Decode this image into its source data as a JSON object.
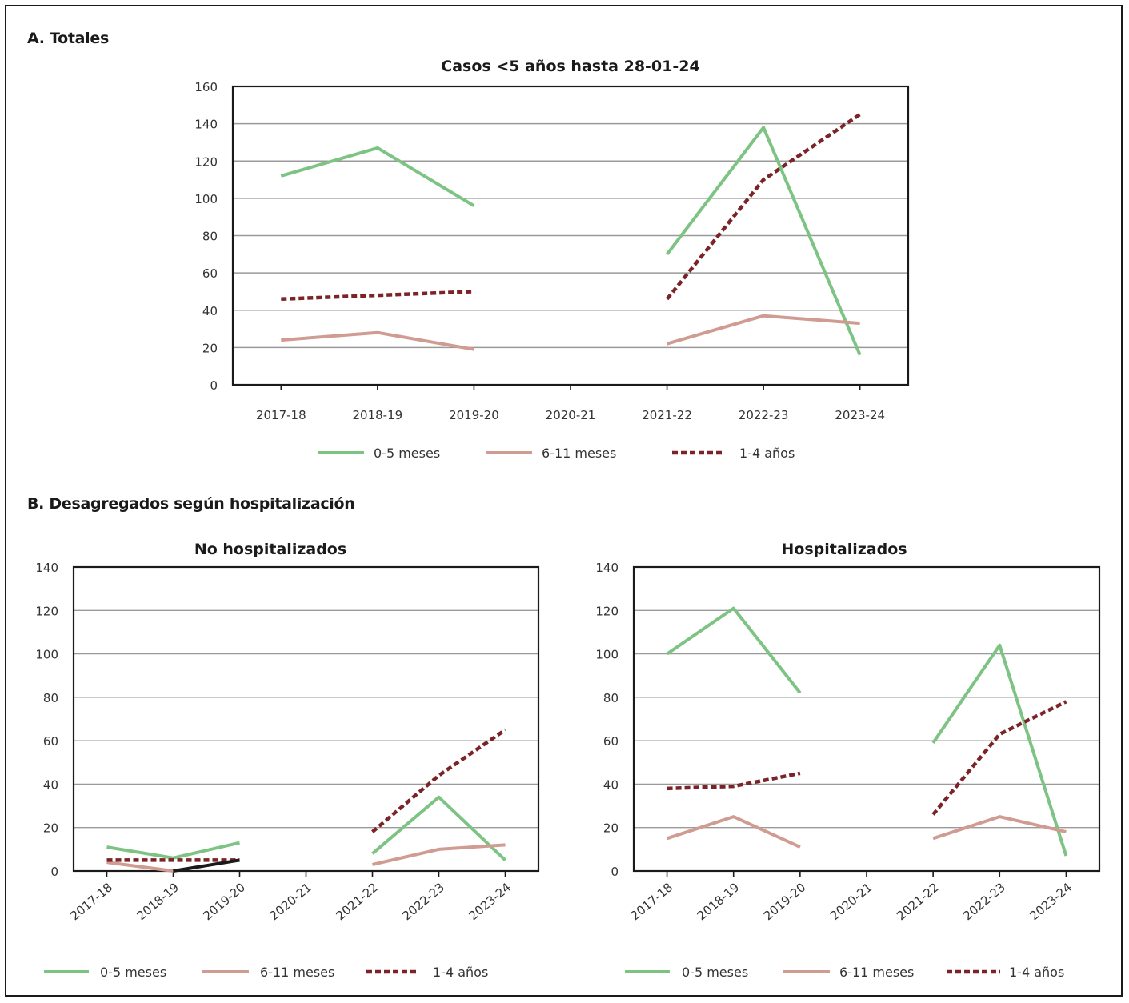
{
  "section_a": {
    "label": "A. Totales"
  },
  "section_b": {
    "label": "B. Desagregados según hospitalización"
  },
  "colors": {
    "0-5 meses": "#7dc383",
    "6-11 meses": "#d09b91",
    "1-4 años": "#7b2327",
    "extra": "#1a1a1a"
  },
  "chart_data": [
    {
      "type": "line",
      "title": "Casos <5 años hasta 28-01-24",
      "categories": [
        "2017-18",
        "2018-19",
        "2019-20",
        "2020-21",
        "2021-22",
        "2022-23",
        "2023-24"
      ],
      "ylim": [
        0,
        160
      ],
      "yticks": [
        0,
        20,
        40,
        60,
        80,
        100,
        120,
        140,
        160
      ],
      "grid": true,
      "legend_position": "bottom",
      "series": [
        {
          "name": "0-5 meses",
          "style": "solid",
          "values": [
            112,
            127,
            96,
            null,
            70,
            138,
            16
          ]
        },
        {
          "name": "6-11 meses",
          "style": "solid",
          "values": [
            24,
            28,
            19,
            null,
            22,
            37,
            33
          ]
        },
        {
          "name": "1-4 años",
          "style": "dotted",
          "values": [
            46,
            48,
            50,
            null,
            46,
            110,
            145
          ]
        }
      ]
    },
    {
      "type": "line",
      "title": "No hospitalizados",
      "categories": [
        "2017-18",
        "2018-19",
        "2019-20",
        "2020-21",
        "2021-22",
        "2022-23",
        "2023-24"
      ],
      "ylim": [
        0,
        140
      ],
      "yticks": [
        0,
        20,
        40,
        60,
        80,
        100,
        120,
        140
      ],
      "grid": true,
      "legend_position": "bottom",
      "series": [
        {
          "name": "0-5 meses",
          "style": "solid",
          "values": [
            11,
            6,
            13,
            null,
            8,
            34,
            5
          ]
        },
        {
          "name": "6-11 meses",
          "style": "solid",
          "values": [
            4,
            0,
            null,
            null,
            3,
            10,
            12
          ]
        },
        {
          "name": "1-4 años",
          "style": "dotted",
          "values": [
            5,
            5,
            5,
            null,
            18,
            44,
            65
          ]
        },
        {
          "style": "extra",
          "values": [
            null,
            0,
            5,
            null,
            null,
            null,
            null
          ]
        }
      ]
    },
    {
      "type": "line",
      "title": "Hospitalizados",
      "categories": [
        "2017-18",
        "2018-19",
        "2019-20",
        "2020-21",
        "2021-22",
        "2022-23",
        "2023-24"
      ],
      "ylim": [
        0,
        140
      ],
      "yticks": [
        0,
        20,
        40,
        60,
        80,
        100,
        120,
        140
      ],
      "grid": true,
      "legend_position": "bottom",
      "series": [
        {
          "name": "0-5 meses",
          "style": "solid",
          "values": [
            100,
            121,
            82,
            null,
            59,
            104,
            7
          ]
        },
        {
          "name": "6-11 meses",
          "style": "solid",
          "values": [
            15,
            25,
            11,
            null,
            15,
            25,
            18
          ]
        },
        {
          "name": "1-4 años",
          "style": "dotted",
          "values": [
            38,
            39,
            45,
            null,
            26,
            63,
            78
          ]
        }
      ]
    }
  ]
}
